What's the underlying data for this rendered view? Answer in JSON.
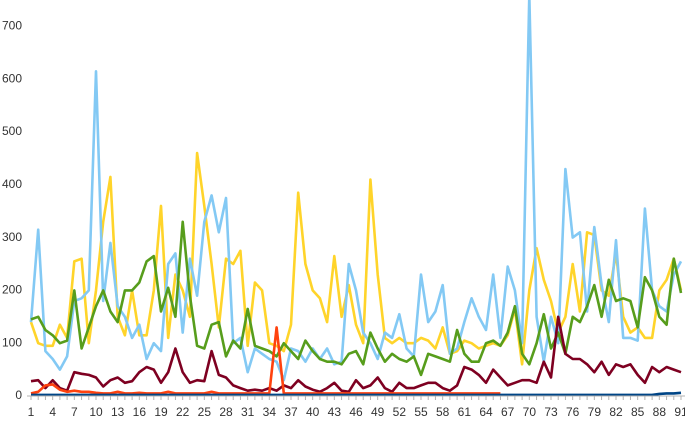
{
  "chart_data": {
    "type": "line",
    "categories": [
      "1",
      null,
      null,
      "4",
      null,
      null,
      "7",
      null,
      null,
      "10",
      null,
      null,
      "13",
      null,
      null,
      "16",
      null,
      null,
      "19",
      null,
      null,
      "22",
      null,
      null,
      "25",
      null,
      null,
      "28",
      null,
      null,
      "31",
      null,
      null,
      "34",
      null,
      null,
      "37",
      null,
      null,
      "40",
      null,
      null,
      "43",
      null,
      null,
      "46",
      null,
      null,
      "49",
      null,
      null,
      "52",
      null,
      null,
      "55",
      null,
      null,
      "58",
      null,
      null,
      "61",
      null,
      null,
      "64",
      null,
      null,
      "67",
      null,
      null,
      "70",
      null,
      null,
      "73",
      null,
      null,
      "76",
      null,
      null,
      "79",
      null,
      null,
      "82",
      null,
      null,
      "85",
      null,
      null,
      "88",
      null,
      null,
      "91"
    ],
    "ylim": [
      0,
      750
    ],
    "yticks": [
      0,
      100,
      200,
      300,
      400,
      500,
      600,
      700
    ],
    "grid": false,
    "series": [
      {
        "color": "#ffd42a",
        "values": [
          140,
          100,
          95,
          95,
          135,
          110,
          255,
          260,
          100,
          200,
          330,
          415,
          150,
          115,
          200,
          115,
          115,
          200,
          360,
          110,
          230,
          200,
          150,
          460,
          360,
          250,
          130,
          260,
          250,
          275,
          95,
          215,
          200,
          100,
          95,
          85,
          135,
          385,
          250,
          200,
          185,
          140,
          265,
          150,
          210,
          135,
          100,
          410,
          230,
          110,
          100,
          110,
          100,
          100,
          110,
          105,
          90,
          130,
          80,
          85,
          105,
          100,
          90,
          95,
          100,
          95,
          115,
          165,
          60,
          200,
          280,
          220,
          180,
          120,
          150,
          250,
          160,
          310,
          305,
          200,
          190,
          270,
          150,
          120,
          130,
          110,
          110,
          200,
          220,
          260,
          200
        ]
      },
      {
        "color": "#83c9f4",
        "values": [
          140,
          315,
          85,
          70,
          50,
          75,
          180,
          185,
          200,
          615,
          180,
          290,
          170,
          150,
          110,
          135,
          70,
          100,
          85,
          250,
          270,
          120,
          260,
          190,
          330,
          380,
          310,
          375,
          100,
          110,
          45,
          90,
          80,
          70,
          65,
          30,
          90,
          85,
          65,
          90,
          70,
          90,
          60,
          65,
          250,
          200,
          120,
          100,
          70,
          120,
          110,
          155,
          90,
          75,
          230,
          140,
          160,
          210,
          80,
          90,
          140,
          185,
          150,
          125,
          230,
          110,
          245,
          200,
          100,
          760,
          150,
          65,
          150,
          100,
          430,
          300,
          310,
          160,
          320,
          210,
          140,
          295,
          110,
          110,
          105,
          355,
          200,
          170,
          160,
          230,
          255
        ]
      },
      {
        "color": "#579d1c",
        "values": [
          145,
          150,
          125,
          115,
          100,
          105,
          200,
          90,
          130,
          170,
          200,
          160,
          140,
          200,
          200,
          215,
          255,
          265,
          160,
          205,
          150,
          330,
          190,
          95,
          90,
          135,
          140,
          75,
          105,
          90,
          165,
          95,
          90,
          85,
          75,
          100,
          85,
          70,
          105,
          85,
          70,
          65,
          65,
          60,
          80,
          85,
          60,
          120,
          90,
          65,
          80,
          70,
          65,
          75,
          40,
          80,
          75,
          70,
          65,
          125,
          80,
          65,
          65,
          100,
          105,
          95,
          120,
          170,
          80,
          60,
          100,
          155,
          90,
          120,
          80,
          150,
          140,
          170,
          210,
          150,
          220,
          180,
          185,
          180,
          130,
          225,
          200,
          150,
          135,
          260,
          195
        ]
      },
      {
        "color": "#7e0021",
        "values": [
          28,
          30,
          15,
          30,
          15,
          10,
          45,
          42,
          40,
          35,
          18,
          30,
          35,
          25,
          28,
          45,
          55,
          50,
          25,
          45,
          90,
          45,
          25,
          30,
          28,
          85,
          40,
          35,
          20,
          15,
          10,
          12,
          10,
          15,
          10,
          20,
          15,
          30,
          18,
          12,
          8,
          15,
          25,
          10,
          8,
          30,
          15,
          20,
          35,
          15,
          8,
          25,
          15,
          15,
          20,
          25,
          25,
          15,
          10,
          20,
          55,
          50,
          40,
          25,
          50,
          35,
          20,
          25,
          30,
          30,
          25,
          65,
          35,
          150,
          80,
          70,
          70,
          60,
          45,
          65,
          40,
          60,
          55,
          60,
          40,
          25,
          55,
          45,
          55,
          50,
          45
        ]
      },
      {
        "color": "#ff420e",
        "values": [
          5,
          8,
          20,
          22,
          12,
          8,
          10,
          8,
          8,
          6,
          5,
          5,
          8,
          5,
          5,
          6,
          5,
          5,
          5,
          8,
          5,
          5,
          5,
          5,
          5,
          8,
          5,
          5,
          5,
          5,
          5,
          5,
          5,
          5,
          130,
          5,
          5,
          5,
          5,
          5,
          5,
          5,
          5,
          5,
          5,
          5,
          5,
          5,
          5,
          5,
          5,
          5,
          5,
          5,
          5,
          5,
          5,
          5,
          5,
          5,
          5,
          5,
          5,
          5,
          5,
          5,
          null,
          null,
          null,
          null,
          null,
          null,
          null,
          null,
          null,
          null,
          null,
          null,
          null,
          null,
          null,
          null,
          null,
          null,
          null,
          null,
          null,
          null,
          null,
          null,
          null
        ]
      },
      {
        "color": "#004586",
        "values": [
          2,
          2,
          2,
          2,
          2,
          2,
          2,
          2,
          2,
          2,
          2,
          2,
          2,
          2,
          2,
          2,
          2,
          2,
          2,
          2,
          2,
          2,
          2,
          2,
          2,
          2,
          2,
          2,
          2,
          2,
          2,
          2,
          2,
          2,
          2,
          2,
          2,
          2,
          2,
          2,
          2,
          2,
          2,
          2,
          2,
          2,
          2,
          2,
          2,
          2,
          2,
          2,
          2,
          2,
          2,
          2,
          2,
          2,
          2,
          2,
          2,
          2,
          2,
          2,
          2,
          2,
          2,
          2,
          2,
          2,
          2,
          2,
          2,
          2,
          2,
          2,
          2,
          2,
          2,
          2,
          2,
          2,
          2,
          2,
          2,
          2,
          2,
          4,
          5,
          5,
          6
        ]
      }
    ]
  }
}
